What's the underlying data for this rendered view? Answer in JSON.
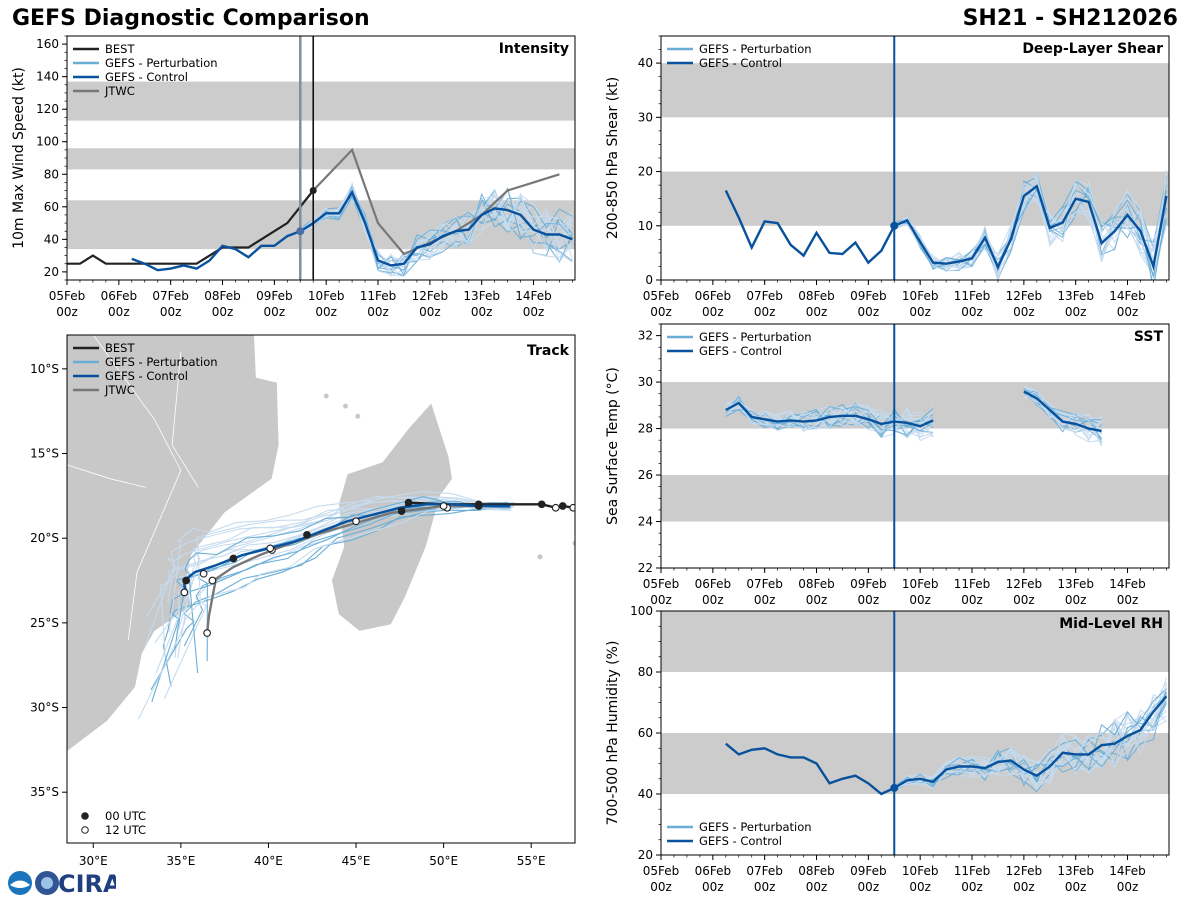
{
  "header": {
    "title_left": "GEFS Diagnostic Comparison",
    "title_right": "SH21 - SH212026"
  },
  "branding": {
    "logo_text": "CIRA"
  },
  "colors": {
    "best": "#222222",
    "perturbation": "#6aaed6",
    "perturbation_light": "#c6dbef",
    "control": "#08519c",
    "jtwc": "#777777",
    "band": "#cccccc",
    "land": "#c8c8c8"
  },
  "time_axis": {
    "start": 0,
    "end": 9.8,
    "ticks": [
      0,
      1,
      2,
      3,
      4,
      5,
      6,
      7,
      8,
      9
    ],
    "tick_labels": [
      "05Feb\n00z",
      "06Feb\n00z",
      "07Feb\n00z",
      "08Feb\n00z",
      "09Feb\n00z",
      "10Feb\n00z",
      "11Feb\n00z",
      "12Feb\n00z",
      "13Feb\n00z",
      "14Feb\n00z"
    ],
    "init_time": 4.5
  },
  "chart_data": [
    {
      "id": "intensity",
      "type": "line",
      "title": "Intensity",
      "ylabel": "10m Max Wind Speed (kt)",
      "ylim": [
        15,
        165
      ],
      "yticks": [
        20,
        40,
        60,
        80,
        100,
        120,
        140,
        160
      ],
      "bands": [
        [
          34,
          64
        ],
        [
          83,
          96
        ],
        [
          113,
          137
        ]
      ],
      "legend": [
        "BEST",
        "GEFS - Perturbation",
        "GEFS - Control",
        "JTWC"
      ],
      "best": {
        "x": [
          0,
          0.25,
          0.5,
          0.75,
          1,
          1.25,
          1.5,
          1.75,
          2,
          2.25,
          2.5,
          2.75,
          3,
          3.25,
          3.5,
          3.75,
          4,
          4.25,
          4.5,
          4.75
        ],
        "y": [
          25,
          25,
          30,
          25,
          25,
          25,
          25,
          25,
          25,
          25,
          25,
          30,
          35,
          35,
          35,
          40,
          45,
          50,
          60,
          70
        ]
      },
      "control": {
        "x": [
          1.25,
          1.5,
          1.75,
          2,
          2.25,
          2.5,
          2.75,
          3,
          3.25,
          3.5,
          3.75,
          4,
          4.25,
          4.5,
          4.75,
          5,
          5.25,
          5.5,
          5.75,
          6,
          6.25,
          6.5,
          6.75,
          7,
          7.25,
          7.5,
          7.75,
          8,
          8.25,
          8.5,
          8.75,
          9,
          9.25,
          9.5,
          9.75
        ],
        "y": [
          28,
          25,
          21,
          22,
          24,
          22,
          27,
          36,
          34,
          29,
          36,
          36,
          42,
          45,
          50,
          56,
          56,
          69,
          50,
          27,
          24,
          25,
          35,
          37,
          42,
          45,
          46,
          55,
          59,
          58,
          55,
          46,
          43,
          43,
          40
        ]
      },
      "jtwc": {
        "x": [
          4.5,
          4.75,
          5.5,
          6,
          6.5,
          7,
          7.5,
          8,
          8.5,
          9,
          9.5
        ],
        "y": [
          60,
          70,
          95,
          50,
          31,
          38,
          45,
          55,
          70,
          75,
          80
        ]
      },
      "init_marker": {
        "x": 4.5,
        "y": 45
      },
      "perturbation_members": 20
    },
    {
      "id": "shear",
      "type": "line",
      "title": "Deep-Layer Shear",
      "ylabel": "200-850 hPa Shear (kt)",
      "ylim": [
        0,
        45
      ],
      "yticks": [
        0,
        10,
        20,
        30,
        40
      ],
      "bands": [
        [
          10,
          20
        ],
        [
          30,
          40
        ]
      ],
      "legend": [
        "GEFS - Perturbation",
        "GEFS - Control"
      ],
      "control": {
        "x": [
          1.25,
          1.5,
          1.75,
          2,
          2.25,
          2.5,
          2.75,
          3,
          3.25,
          3.5,
          3.75,
          4,
          4.25,
          4.5,
          4.75,
          5,
          5.25,
          5.5,
          5.75,
          6,
          6.25,
          6.5,
          6.75,
          7,
          7.25,
          7.5,
          7.75,
          8,
          8.25,
          8.5,
          8.75,
          9,
          9.25,
          9.5,
          9.75
        ],
        "y": [
          16.5,
          11.5,
          6,
          10.8,
          10.5,
          6.5,
          4.5,
          8.7,
          5,
          4.8,
          6.9,
          3.2,
          5.4,
          10,
          11,
          7,
          3.2,
          3,
          3.4,
          4,
          7.8,
          2.4,
          7.5,
          15.5,
          17.3,
          9.6,
          10.6,
          15,
          14.4,
          6.8,
          9,
          12,
          9,
          2.5,
          15.5
        ]
      },
      "init_marker": {
        "x": 4.5,
        "y": 10
      },
      "perturbation_members": 20
    },
    {
      "id": "sst",
      "type": "line",
      "title": "SST",
      "ylabel": "Sea Surface Temp (°C)",
      "ylim": [
        22,
        32.5
      ],
      "yticks": [
        22,
        24,
        26,
        28,
        30,
        32
      ],
      "bands": [
        [
          24,
          26
        ],
        [
          28,
          30
        ]
      ],
      "legend": [
        "GEFS - Perturbation",
        "GEFS - Control"
      ],
      "control_seg1": {
        "x": [
          1.25,
          1.5,
          1.75,
          2,
          2.25,
          2.5,
          2.75,
          3,
          3.25,
          3.5,
          3.75,
          4,
          4.25,
          4.5,
          4.75,
          5,
          5.25
        ],
        "y": [
          28.8,
          29.1,
          28.5,
          28.4,
          28.3,
          28.35,
          28.3,
          28.35,
          28.5,
          28.55,
          28.55,
          28.4,
          28.2,
          28.3,
          28.25,
          28.1,
          28.35
        ]
      },
      "control_seg2": {
        "x": [
          7,
          7.25,
          7.5,
          7.75,
          8,
          8.25,
          8.5
        ],
        "y": [
          29.6,
          29.3,
          28.8,
          28.3,
          28.2,
          28.0,
          27.9
        ]
      },
      "perturbation_members": 20
    },
    {
      "id": "rh",
      "type": "line",
      "title": "Mid-Level RH",
      "ylabel": "700-500 hPa Humidity (%)",
      "ylim": [
        20,
        100
      ],
      "yticks": [
        20,
        40,
        60,
        80,
        100
      ],
      "bands": [
        [
          40,
          60
        ],
        [
          80,
          100
        ]
      ],
      "legend": [
        "GEFS - Perturbation",
        "GEFS - Control"
      ],
      "control": {
        "x": [
          1.25,
          1.5,
          1.75,
          2,
          2.25,
          2.5,
          2.75,
          3,
          3.25,
          3.5,
          3.75,
          4,
          4.25,
          4.5,
          4.75,
          5,
          5.25,
          5.5,
          5.75,
          6,
          6.25,
          6.5,
          6.75,
          7,
          7.25,
          7.5,
          7.75,
          8,
          8.25,
          8.5,
          8.75,
          9,
          9.25,
          9.5,
          9.75
        ],
        "y": [
          56.5,
          53,
          54.5,
          55,
          53,
          52,
          52,
          50,
          43.5,
          45,
          46,
          43.5,
          40,
          42,
          44.5,
          45,
          44,
          48,
          49,
          49,
          48.5,
          50.5,
          51,
          48,
          46,
          49,
          53.5,
          53,
          53,
          56,
          56.5,
          59,
          61,
          67,
          72
        ]
      },
      "init_marker": {
        "x": 4.5,
        "y": 42
      },
      "perturbation_members": 20
    },
    {
      "id": "track",
      "type": "scatter",
      "title": "Track",
      "xlim": [
        28.5,
        57.5
      ],
      "ylim": [
        -38,
        -8
      ],
      "xticks": [
        30,
        35,
        40,
        45,
        50,
        55
      ],
      "xtick_labels": [
        "30°E",
        "35°E",
        "40°E",
        "45°E",
        "50°E",
        "55°E"
      ],
      "yticks": [
        -10,
        -15,
        -20,
        -25,
        -30,
        -35
      ],
      "ytick_labels": [
        "10°S",
        "15°S",
        "20°S",
        "25°S",
        "30°S",
        "35°S"
      ],
      "legend": [
        "BEST",
        "GEFS - Perturbation",
        "GEFS - Control",
        "JTWC"
      ],
      "marker_legend": [
        "00 UTC",
        "12 UTC"
      ],
      "best": {
        "lon": [
          57.8,
          57.4,
          56.8,
          56.4,
          55.6,
          53.8,
          52.0,
          50.0,
          48.0,
          47.6
        ],
        "lat": [
          -18.0,
          -18.2,
          -18.1,
          -18.2,
          -18.0,
          -18.0,
          -18.0,
          -18.0,
          -17.9,
          -18.4
        ]
      },
      "best_00z": [
        [
          57.8,
          -18.0
        ],
        [
          56.8,
          -18.1
        ],
        [
          55.6,
          -18.0
        ],
        [
          52.0,
          -18.0
        ],
        [
          48.0,
          -17.9
        ],
        [
          47.6,
          -18.4
        ]
      ],
      "best_12z": [
        [
          57.4,
          -18.2
        ],
        [
          56.4,
          -18.2
        ]
      ],
      "control": {
        "lon": [
          53.8,
          52,
          50.5,
          49,
          47.5,
          46,
          44.5,
          43,
          41.5,
          40,
          38.5,
          37,
          35.8,
          35.2,
          35.2,
          35.3
        ],
        "lat": [
          -18.1,
          -18.1,
          -18.0,
          -18.0,
          -18.2,
          -18.6,
          -19.0,
          -19.6,
          -20.2,
          -20.6,
          -21.0,
          -21.6,
          -22.0,
          -22.5,
          -22.8,
          -23.2
        ]
      },
      "control_00z": [
        [
          52,
          -18.1
        ],
        [
          42.2,
          -19.8
        ],
        [
          38.0,
          -21.2
        ],
        [
          35.3,
          -22.5
        ]
      ],
      "control_12z": [
        [
          50.2,
          -18.2
        ],
        [
          40.2,
          -20.7
        ],
        [
          35.2,
          -23.2
        ]
      ],
      "jtwc": {
        "lon": [
          53.8,
          50,
          47,
          45,
          43,
          41,
          39.5,
          38,
          37,
          36.8,
          36.6,
          36.5
        ],
        "lat": [
          -18.1,
          -18.1,
          -18.5,
          -19.1,
          -19.7,
          -20.4,
          -21.0,
          -21.7,
          -22.4,
          -23.5,
          -24.6,
          -25.6
        ]
      },
      "jtwc_00z": [
        [
          36.5,
          -25.6
        ]
      ],
      "jtwc_12z": [
        [
          50.0,
          -18.1
        ],
        [
          45.0,
          -19.0
        ],
        [
          40.1,
          -20.6
        ],
        [
          36.3,
          -22.1
        ],
        [
          36.8,
          -22.5
        ],
        [
          36.5,
          -25.6
        ]
      ],
      "perturbation_members": 20
    }
  ]
}
